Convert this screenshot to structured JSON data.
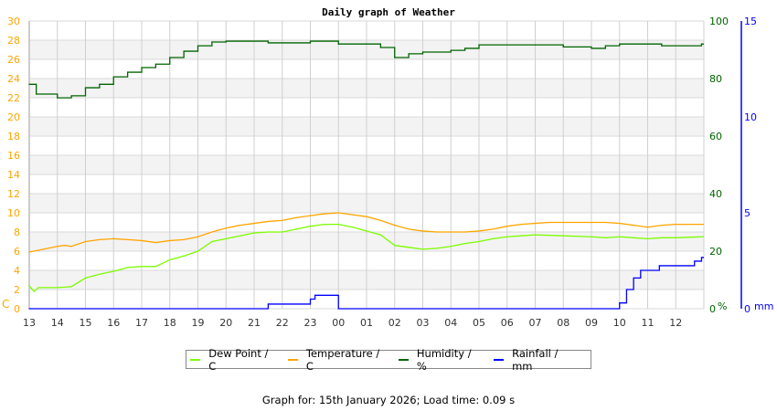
{
  "chart_data": {
    "type": "line",
    "title": "Daily graph of Weather",
    "x_ticks": [
      "13",
      "14",
      "15",
      "16",
      "17",
      "18",
      "19",
      "20",
      "21",
      "22",
      "23",
      "00",
      "01",
      "02",
      "03",
      "04",
      "05",
      "06",
      "07",
      "08",
      "09",
      "10",
      "11",
      "12"
    ],
    "grid": true,
    "legend_placement": "bottom",
    "axes": {
      "left": {
        "unit_label": "C",
        "ylim": [
          0,
          30
        ],
        "ticks": [
          "0",
          "2",
          "4",
          "6",
          "8",
          "10",
          "12",
          "14",
          "16",
          "18",
          "20",
          "22",
          "24",
          "26",
          "28",
          "30"
        ],
        "color": "#ffa500"
      },
      "right_humidity": {
        "unit_label": "%",
        "ylim": [
          0,
          100
        ],
        "ticks": [
          "0",
          "20",
          "40",
          "60",
          "80",
          "100"
        ],
        "color": "#006400"
      },
      "right_rainfall": {
        "unit_label": "mm",
        "ylim": [
          0,
          15
        ],
        "ticks": [
          "0",
          "5",
          "10",
          "15"
        ],
        "color": "#0000ff"
      }
    },
    "series": [
      {
        "name": "Dew Point / C",
        "axis": "left",
        "color": "#7cfc00",
        "x": [
          "13:00",
          "13:10",
          "13:20",
          "14:00",
          "14:30",
          "15:00",
          "15:30",
          "16:00",
          "16:30",
          "17:00",
          "17:30",
          "18:00",
          "18:30",
          "19:00",
          "19:30",
          "20:00",
          "20:30",
          "21:00",
          "21:30",
          "22:00",
          "22:30",
          "23:00",
          "23:30",
          "00:00",
          "00:30",
          "01:00",
          "01:30",
          "02:00",
          "02:30",
          "03:00",
          "03:30",
          "04:00",
          "04:30",
          "05:00",
          "05:30",
          "06:00",
          "06:30",
          "07:00",
          "08:00",
          "09:00",
          "09:30",
          "10:00",
          "10:30",
          "11:00",
          "11:30",
          "12:00",
          "12:55"
        ],
        "values": [
          2.4,
          1.8,
          2.2,
          2.2,
          2.3,
          3.2,
          3.6,
          3.9,
          4.3,
          4.4,
          4.4,
          5.1,
          5.5,
          6.0,
          7.0,
          7.3,
          7.6,
          7.9,
          8.0,
          8.0,
          8.3,
          8.6,
          8.8,
          8.8,
          8.5,
          8.1,
          7.7,
          6.6,
          6.4,
          6.2,
          6.3,
          6.5,
          6.8,
          7.0,
          7.3,
          7.5,
          7.6,
          7.7,
          7.6,
          7.5,
          7.4,
          7.5,
          7.4,
          7.3,
          7.4,
          7.4,
          7.5
        ]
      },
      {
        "name": "Temperature / C",
        "axis": "left",
        "color": "#ffa500",
        "x": [
          "13:00",
          "13:30",
          "14:00",
          "14:15",
          "14:30",
          "15:00",
          "15:30",
          "16:00",
          "16:30",
          "17:00",
          "17:30",
          "18:00",
          "18:30",
          "19:00",
          "19:30",
          "20:00",
          "20:30",
          "21:00",
          "21:30",
          "22:00",
          "22:30",
          "23:00",
          "23:30",
          "00:00",
          "00:30",
          "01:00",
          "01:30",
          "02:00",
          "02:30",
          "03:00",
          "03:30",
          "04:00",
          "04:30",
          "05:00",
          "05:30",
          "06:00",
          "06:30",
          "07:00",
          "07:30",
          "08:00",
          "09:00",
          "09:30",
          "10:00",
          "10:30",
          "11:00",
          "11:30",
          "12:00",
          "12:55"
        ],
        "values": [
          5.9,
          6.2,
          6.5,
          6.6,
          6.5,
          7.0,
          7.2,
          7.3,
          7.2,
          7.1,
          6.9,
          7.1,
          7.2,
          7.5,
          8.0,
          8.4,
          8.7,
          8.9,
          9.1,
          9.2,
          9.5,
          9.7,
          9.9,
          10.0,
          9.8,
          9.6,
          9.2,
          8.7,
          8.3,
          8.1,
          8.0,
          8.0,
          8.0,
          8.1,
          8.3,
          8.6,
          8.8,
          8.9,
          9.0,
          9.0,
          9.0,
          9.0,
          8.9,
          8.7,
          8.5,
          8.7,
          8.8,
          8.8
        ]
      },
      {
        "name": "Humidity / %",
        "axis": "right_humidity",
        "color": "#006400",
        "x": [
          "13:00",
          "13:15",
          "14:00",
          "14:30",
          "15:00",
          "15:30",
          "16:00",
          "16:30",
          "17:00",
          "17:30",
          "18:00",
          "18:30",
          "19:00",
          "19:30",
          "20:00",
          "21:30",
          "23:00",
          "00:00",
          "01:30",
          "02:00",
          "02:30",
          "03:00",
          "04:00",
          "04:30",
          "05:00",
          "07:00",
          "08:00",
          "09:00",
          "09:30",
          "10:00",
          "11:30",
          "12:55"
        ],
        "values": [
          78,
          74.6,
          73.3,
          74,
          76.8,
          78,
          80.6,
          82.2,
          83.8,
          85,
          87.3,
          89.5,
          91.4,
          92.7,
          93,
          92.4,
          93,
          92,
          90.8,
          87.3,
          88.6,
          89.2,
          89.8,
          90.5,
          91.7,
          91.7,
          91,
          90.5,
          91.4,
          92,
          91.4,
          92
        ]
      },
      {
        "name": "Rainfall / mm",
        "axis": "right_rainfall",
        "color": "#0000ff",
        "x": [
          "13:00",
          "21:30",
          "23:00",
          "23:10",
          "00:00",
          "09:45",
          "10:00",
          "10:15",
          "10:30",
          "10:45",
          "11:25",
          "12:40",
          "12:55"
        ],
        "values": [
          0,
          0.24,
          0.5,
          0.7,
          0,
          0,
          0.3,
          1.0,
          1.6,
          2.0,
          2.24,
          2.48,
          2.67
        ]
      }
    ]
  },
  "footer": "Graph for: 15th January 2026; Load time: 0.09 s"
}
